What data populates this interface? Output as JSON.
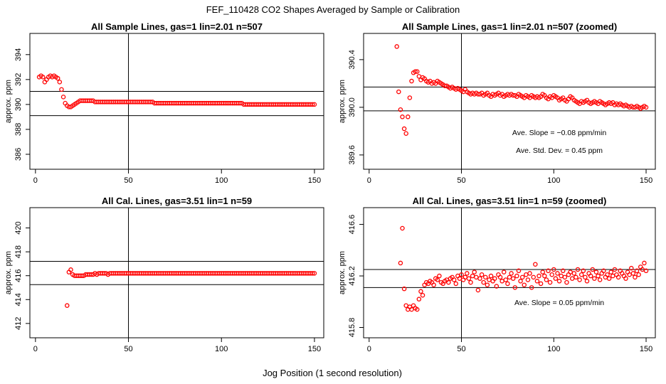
{
  "figure": {
    "title": "FEF_110428  CO2 Shapes Averaged by Sample or Calibration",
    "xlabel": "Jog Position (1 second resolution)"
  },
  "chart_data": [
    {
      "type": "scatter",
      "title": "All Sample Lines, gas=1 lin=2.01 n=507",
      "xlabel": "",
      "ylabel": "approx. ppm",
      "xlim": [
        -3,
        155
      ],
      "ylim": [
        384.8,
        395.7
      ],
      "xticks": [
        0,
        50,
        100,
        150
      ],
      "yticks": [
        386,
        388,
        390,
        392,
        394
      ],
      "hlines": [
        391.05,
        389.1
      ],
      "vline": 50,
      "marker_color": "#ff0000",
      "annotations": [],
      "series": [
        {
          "name": "sample",
          "x_start": 2,
          "x_end": 150,
          "y": [
            392.2,
            392.3,
            392.2,
            391.8,
            392.0,
            392.2,
            392.3,
            392.2,
            392.3,
            392.2,
            392.1,
            391.8,
            391.2,
            390.6,
            390.1,
            389.9,
            389.8,
            389.8,
            389.9,
            390.0,
            390.1,
            390.2,
            390.3,
            390.3,
            390.3,
            390.3,
            390.3,
            390.3,
            390.3,
            390.3,
            390.2,
            390.2,
            390.2,
            390.2,
            390.2,
            390.2,
            390.2,
            390.2,
            390.2,
            390.2,
            390.2,
            390.2,
            390.2,
            390.2,
            390.2,
            390.2,
            390.2,
            390.2,
            390.2,
            390.2,
            390.2,
            390.2,
            390.2,
            390.2,
            390.2,
            390.2,
            390.2,
            390.2,
            390.2,
            390.2,
            390.2,
            390.2,
            390.1,
            390.1,
            390.1,
            390.1,
            390.1,
            390.1,
            390.1,
            390.1,
            390.1,
            390.1,
            390.1,
            390.1,
            390.1,
            390.1,
            390.1,
            390.1,
            390.1,
            390.1,
            390.1,
            390.1,
            390.1,
            390.1,
            390.1,
            390.1,
            390.1,
            390.1,
            390.1,
            390.1,
            390.1,
            390.1,
            390.1,
            390.1,
            390.1,
            390.1,
            390.1,
            390.1,
            390.1,
            390.1,
            390.1,
            390.1,
            390.1,
            390.1,
            390.1,
            390.1,
            390.1,
            390.1,
            390.1,
            390.1,
            390.0,
            390.0,
            390.0,
            390.0,
            390.0,
            390.0,
            390.0,
            390.0,
            390.0,
            390.0,
            390.0,
            390.0,
            390.0,
            390.0,
            390.0,
            390.0,
            390.0,
            390.0,
            390.0,
            390.0,
            390.0,
            390.0,
            390.0,
            390.0,
            390.0,
            390.0,
            390.0,
            390.0,
            390.0,
            390.0,
            390.0,
            390.0,
            390.0,
            390.0,
            390.0,
            390.0,
            390.0,
            390.0,
            390.0,
            390.0,
            390.0,
            390.0,
            390.0,
            390.0,
            390.0,
            390.0,
            390.0,
            390.0
          ]
        }
      ]
    },
    {
      "type": "scatter",
      "title": "All Sample Lines, gas=1 lin=2.01 n=507 (zoomed)",
      "xlabel": "",
      "ylabel": "approx. ppm",
      "xlim": [
        -3,
        155
      ],
      "ylim": [
        389.48,
        390.62
      ],
      "xticks": [
        0,
        50,
        100,
        150
      ],
      "yticks": [
        389.6,
        390.0,
        390.4
      ],
      "hlines": [
        390.17,
        389.97
      ],
      "vline": 50,
      "marker_color": "#ff0000",
      "annotations": [
        "Ave. Slope =  −0.08  ppm/min",
        "Ave. Std. Dev. =  0.45  ppm"
      ],
      "series": [
        {
          "name": "sample zoomed",
          "x_start": 15,
          "x_end": 150,
          "y": [
            390.51,
            390.13,
            389.98,
            389.92,
            389.82,
            389.78,
            389.92,
            390.08,
            390.22,
            390.29,
            390.3,
            390.3,
            390.26,
            390.23,
            390.25,
            390.24,
            390.22,
            390.21,
            390.22,
            390.2,
            390.21,
            390.2,
            390.22,
            390.21,
            390.2,
            390.19,
            390.18,
            390.18,
            390.17,
            390.16,
            390.17,
            390.16,
            390.15,
            390.16,
            390.15,
            390.14,
            390.13,
            390.15,
            390.13,
            390.12,
            390.11,
            390.12,
            390.11,
            390.12,
            390.11,
            390.11,
            390.12,
            390.1,
            390.11,
            390.12,
            390.1,
            390.09,
            390.11,
            390.1,
            390.11,
            390.12,
            390.1,
            390.11,
            390.09,
            390.1,
            390.11,
            390.1,
            390.11,
            390.1,
            390.1,
            390.09,
            390.11,
            390.1,
            390.09,
            390.08,
            390.1,
            390.09,
            390.08,
            390.1,
            390.09,
            390.08,
            390.09,
            390.08,
            390.09,
            390.11,
            390.1,
            390.08,
            390.07,
            390.09,
            390.08,
            390.1,
            390.09,
            390.08,
            390.06,
            390.07,
            390.08,
            390.06,
            390.05,
            390.07,
            390.09,
            390.08,
            390.06,
            390.05,
            390.04,
            390.03,
            390.05,
            390.04,
            390.05,
            390.06,
            390.04,
            390.03,
            390.04,
            390.05,
            390.04,
            390.03,
            390.05,
            390.04,
            390.03,
            390.02,
            390.03,
            390.04,
            390.03,
            390.04,
            390.02,
            390.03,
            390.02,
            390.03,
            390.02,
            390.01,
            390.02,
            390.01,
            390.0,
            390.01,
            390.0,
            390.0,
            390.01,
            390.0,
            389.99,
            390.0,
            390.01,
            390.0
          ]
        }
      ]
    },
    {
      "type": "scatter",
      "title": "All Cal. Lines, gas=3.51 lin=1 n=59",
      "xlabel": "",
      "ylabel": "approx. ppm",
      "xlim": [
        -3,
        155
      ],
      "ylim": [
        410.8,
        421.7
      ],
      "xticks": [
        0,
        50,
        100,
        150
      ],
      "yticks": [
        412,
        414,
        416,
        418,
        420
      ],
      "hlines": [
        417.2,
        415.25
      ],
      "vline": 50,
      "marker_color": "#ff0000",
      "annotations": [],
      "series": [
        {
          "name": "cal",
          "x_start": 17,
          "x_end": 150,
          "y": [
            413.5,
            416.3,
            416.5,
            416.1,
            416.0,
            416.0,
            416.0,
            416.0,
            416.0,
            416.0,
            416.1,
            416.1,
            416.1,
            416.1,
            416.1,
            416.2,
            416.1,
            416.2,
            416.2,
            416.2,
            416.2,
            416.2,
            416.1,
            416.2,
            416.2,
            416.2,
            416.2,
            416.2,
            416.2,
            416.2,
            416.2,
            416.2,
            416.2,
            416.2,
            416.2,
            416.2,
            416.2,
            416.2,
            416.2,
            416.2,
            416.2,
            416.2,
            416.2,
            416.2,
            416.2,
            416.2,
            416.2,
            416.2,
            416.2,
            416.2,
            416.2,
            416.2,
            416.2,
            416.2,
            416.2,
            416.2,
            416.2,
            416.2,
            416.2,
            416.2,
            416.2,
            416.2,
            416.2,
            416.2,
            416.2,
            416.2,
            416.2,
            416.2,
            416.2,
            416.2,
            416.2,
            416.2,
            416.2,
            416.2,
            416.2,
            416.2,
            416.2,
            416.2,
            416.2,
            416.2,
            416.2,
            416.2,
            416.2,
            416.2,
            416.2,
            416.2,
            416.2,
            416.2,
            416.2,
            416.2,
            416.2,
            416.2,
            416.2,
            416.2,
            416.2,
            416.2,
            416.2,
            416.2,
            416.2,
            416.2,
            416.2,
            416.2,
            416.2,
            416.2,
            416.2,
            416.2,
            416.2,
            416.2,
            416.2,
            416.2,
            416.2,
            416.2,
            416.2,
            416.2,
            416.2,
            416.2,
            416.2,
            416.2,
            416.2,
            416.2,
            416.2,
            416.2,
            416.2,
            416.2,
            416.2,
            416.2,
            416.2,
            416.2,
            416.2,
            416.2,
            416.2,
            416.2,
            416.2,
            416.2
          ]
        }
      ]
    },
    {
      "type": "scatter",
      "title": "All Cal. Lines, gas=3.51 lin=1 n=59 (zoomed)",
      "xlabel": "",
      "ylabel": "approx. ppm",
      "xlim": [
        -3,
        155
      ],
      "ylim": [
        415.72,
        416.73
      ],
      "xticks": [
        0,
        50,
        100,
        150
      ],
      "yticks": [
        415.8,
        416.2,
        416.6
      ],
      "hlines": [
        416.25,
        416.11
      ],
      "vline": 50,
      "marker_color": "#ff0000",
      "annotations": [
        "Ave. Slope =  0.05  ppm/min"
      ],
      "series": [
        {
          "name": "cal zoomed",
          "x_start": 17,
          "x_end": 150,
          "y": [
            416.3,
            416.57,
            416.1,
            415.97,
            415.94,
            415.96,
            415.94,
            415.97,
            415.95,
            415.94,
            416.02,
            416.08,
            416.05,
            416.13,
            416.15,
            416.14,
            416.16,
            416.15,
            416.13,
            416.18,
            416.17,
            416.2,
            416.15,
            416.14,
            416.16,
            416.17,
            416.15,
            416.18,
            416.19,
            416.17,
            416.14,
            416.2,
            416.18,
            416.21,
            416.17,
            416.19,
            416.22,
            416.18,
            416.15,
            416.2,
            416.23,
            416.19,
            416.09,
            416.18,
            416.21,
            416.15,
            416.19,
            416.13,
            416.17,
            416.2,
            416.16,
            416.18,
            416.12,
            416.21,
            416.19,
            416.16,
            416.23,
            416.17,
            416.14,
            416.19,
            416.22,
            416.18,
            416.11,
            416.2,
            416.24,
            416.16,
            416.19,
            416.13,
            416.21,
            416.17,
            416.22,
            416.11,
            416.19,
            416.29,
            416.16,
            416.2,
            416.14,
            416.23,
            416.2,
            416.17,
            416.24,
            416.15,
            416.21,
            416.25,
            416.18,
            416.22,
            416.16,
            416.2,
            416.24,
            416.19,
            416.15,
            416.21,
            416.23,
            416.18,
            416.22,
            416.19,
            416.25,
            416.17,
            416.21,
            416.24,
            416.19,
            416.16,
            416.22,
            416.2,
            416.25,
            416.18,
            416.23,
            416.2,
            416.17,
            416.22,
            416.24,
            416.19,
            416.21,
            416.18,
            416.23,
            416.2,
            416.25,
            416.21,
            416.19,
            416.24,
            416.22,
            416.2,
            416.18,
            416.23,
            416.21,
            416.26,
            416.22,
            416.19,
            416.24,
            416.21,
            416.27,
            416.25,
            416.3,
            416.24
          ]
        }
      ]
    }
  ]
}
